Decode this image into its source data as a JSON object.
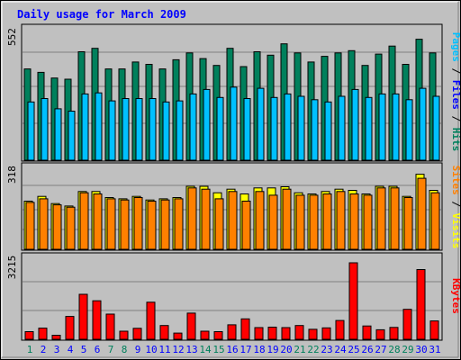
{
  "title": "Daily usage for March 2009",
  "colors": {
    "background": "#c0c0c0",
    "panel": "#c0c0c0",
    "title": "#0000ff",
    "hits": "#00805c",
    "files": "#0000ff",
    "pages": "#00c0ff",
    "visits": "#ffff00",
    "sites": "#ff8000",
    "kbytes": "#ff0000",
    "weekend_label": "#00805c",
    "weekday_label": "#0000ff"
  },
  "chart_data": [
    {
      "type": "bar",
      "panel": "hits-files-pages",
      "y_max_label": "552",
      "ylim": [
        0,
        552
      ],
      "categories": [
        "1",
        "2",
        "3",
        "4",
        "5",
        "6",
        "7",
        "8",
        "9",
        "10",
        "11",
        "12",
        "13",
        "14",
        "15",
        "16",
        "17",
        "18",
        "19",
        "20",
        "21",
        "22",
        "23",
        "24",
        "25",
        "26",
        "27",
        "28",
        "29",
        "30",
        "31"
      ],
      "weekend": [
        true,
        false,
        false,
        false,
        false,
        false,
        true,
        true,
        false,
        false,
        false,
        false,
        false,
        true,
        true,
        false,
        false,
        false,
        false,
        false,
        true,
        true,
        false,
        false,
        false,
        false,
        false,
        true,
        true,
        false,
        false
      ],
      "legend": [
        "Pages",
        "Files",
        "Hits"
      ],
      "series": [
        {
          "name": "Hits",
          "color_key": "hits",
          "values": [
            400,
            385,
            360,
            355,
            475,
            490,
            400,
            400,
            430,
            420,
            400,
            440,
            470,
            445,
            415,
            490,
            410,
            475,
            460,
            510,
            470,
            430,
            455,
            470,
            480,
            415,
            465,
            500,
            420,
            530,
            470
          ]
        },
        {
          "name": "Pages",
          "color_key": "pages",
          "values": [
            255,
            270,
            225,
            215,
            290,
            295,
            260,
            270,
            270,
            270,
            255,
            260,
            290,
            310,
            275,
            320,
            270,
            315,
            275,
            290,
            280,
            265,
            255,
            280,
            310,
            275,
            290,
            290,
            265,
            315,
            280
          ]
        }
      ]
    },
    {
      "type": "bar",
      "panel": "visits-sites",
      "y_max_label": "318",
      "ylim": [
        0,
        318
      ],
      "categories": [
        "1",
        "2",
        "3",
        "4",
        "5",
        "6",
        "7",
        "8",
        "9",
        "10",
        "11",
        "12",
        "13",
        "14",
        "15",
        "16",
        "17",
        "18",
        "19",
        "20",
        "21",
        "22",
        "23",
        "24",
        "25",
        "26",
        "27",
        "28",
        "29",
        "30",
        "31"
      ],
      "legend": [
        "Sites",
        "Visits"
      ],
      "series": [
        {
          "name": "Visits",
          "color_key": "visits",
          "values": [
            200,
            220,
            190,
            180,
            240,
            240,
            215,
            210,
            220,
            205,
            210,
            215,
            262,
            262,
            235,
            250,
            230,
            255,
            255,
            260,
            235,
            230,
            240,
            250,
            245,
            230,
            262,
            262,
            220,
            312,
            245
          ]
        },
        {
          "name": "Sites",
          "color_key": "sites",
          "values": [
            195,
            210,
            185,
            175,
            235,
            230,
            210,
            205,
            215,
            200,
            205,
            210,
            255,
            250,
            210,
            240,
            200,
            240,
            225,
            250,
            225,
            225,
            230,
            240,
            230,
            225,
            255,
            255,
            215,
            295,
            235
          ]
        }
      ]
    },
    {
      "type": "bar",
      "panel": "kbytes",
      "y_max_label": "3215",
      "ylim": [
        0,
        3215
      ],
      "categories": [
        "1",
        "2",
        "3",
        "4",
        "5",
        "6",
        "7",
        "8",
        "9",
        "10",
        "11",
        "12",
        "13",
        "14",
        "15",
        "16",
        "17",
        "18",
        "19",
        "20",
        "21",
        "22",
        "23",
        "24",
        "25",
        "26",
        "27",
        "28",
        "29",
        "30",
        "31"
      ],
      "legend": [
        "KBytes"
      ],
      "series": [
        {
          "name": "KBytes",
          "color_key": "kbytes",
          "values": [
            320,
            470,
            170,
            960,
            1890,
            1620,
            1060,
            340,
            460,
            1560,
            580,
            260,
            1100,
            340,
            320,
            610,
            860,
            490,
            510,
            490,
            580,
            420,
            480,
            790,
            3215,
            560,
            400,
            500,
            1260,
            2930,
            770
          ]
        }
      ]
    }
  ]
}
